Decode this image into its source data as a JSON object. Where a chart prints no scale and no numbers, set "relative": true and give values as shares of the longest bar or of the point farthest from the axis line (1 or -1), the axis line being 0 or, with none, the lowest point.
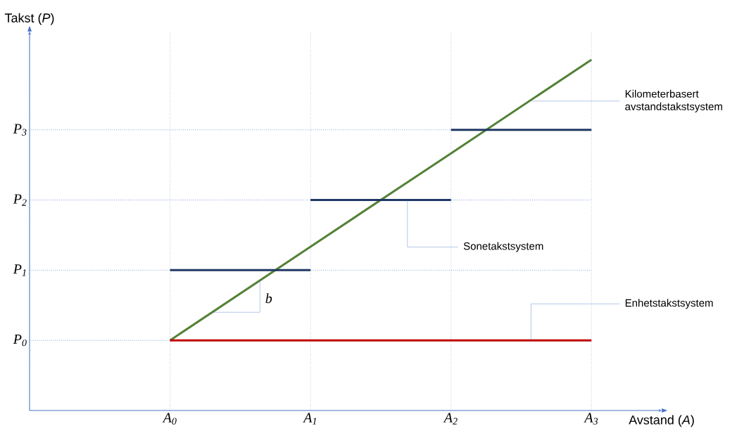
{
  "chart_data": {
    "type": "line",
    "xlabel": "Avstand (*A*)",
    "ylabel": "Takst (*P*)",
    "relative": true,
    "categories": [
      null,
      "A$_{0}$",
      "A$_{1}$",
      "A$_{2}$",
      "A$_{3}$"
    ],
    "grid": "x",
    "series": [
      {
        "name": "Kilometerbasert avstandstakstsystem",
        "color": "#538135",
        "values": [
          null,
          0.2,
          0.467,
          0.733,
          1
        ]
      },
      {
        "name": "Sonetakstsystem",
        "type": "step",
        "color": "#203864",
        "values": [
          null,
          0.4,
          0.6,
          0.8,
          0.8
        ]
      },
      {
        "name": "Enhetstakstsystem",
        "color": "#c00000",
        "values": [
          null,
          0.2,
          0.2,
          0.2,
          0.2
        ]
      }
    ],
    "ref_lines": [
      {
        "axis": "y",
        "value": 0.2,
        "label": "P$_{0}$",
        "color": "#4472c4",
        "line_style": "dotted"
      },
      {
        "axis": "y",
        "value": 0.4,
        "label": "P$_{1}$",
        "color": "#4472c4",
        "line_style": "dotted"
      },
      {
        "axis": "y",
        "value": 0.6,
        "label": "P$_{2}$",
        "color": "#4472c4",
        "line_style": "dotted"
      },
      {
        "axis": "y",
        "value": 0.8,
        "label": "P$_{3}$",
        "color": "#4472c4",
        "line_style": "dotted"
      }
    ],
    "annotations": [
      "b"
    ]
  }
}
